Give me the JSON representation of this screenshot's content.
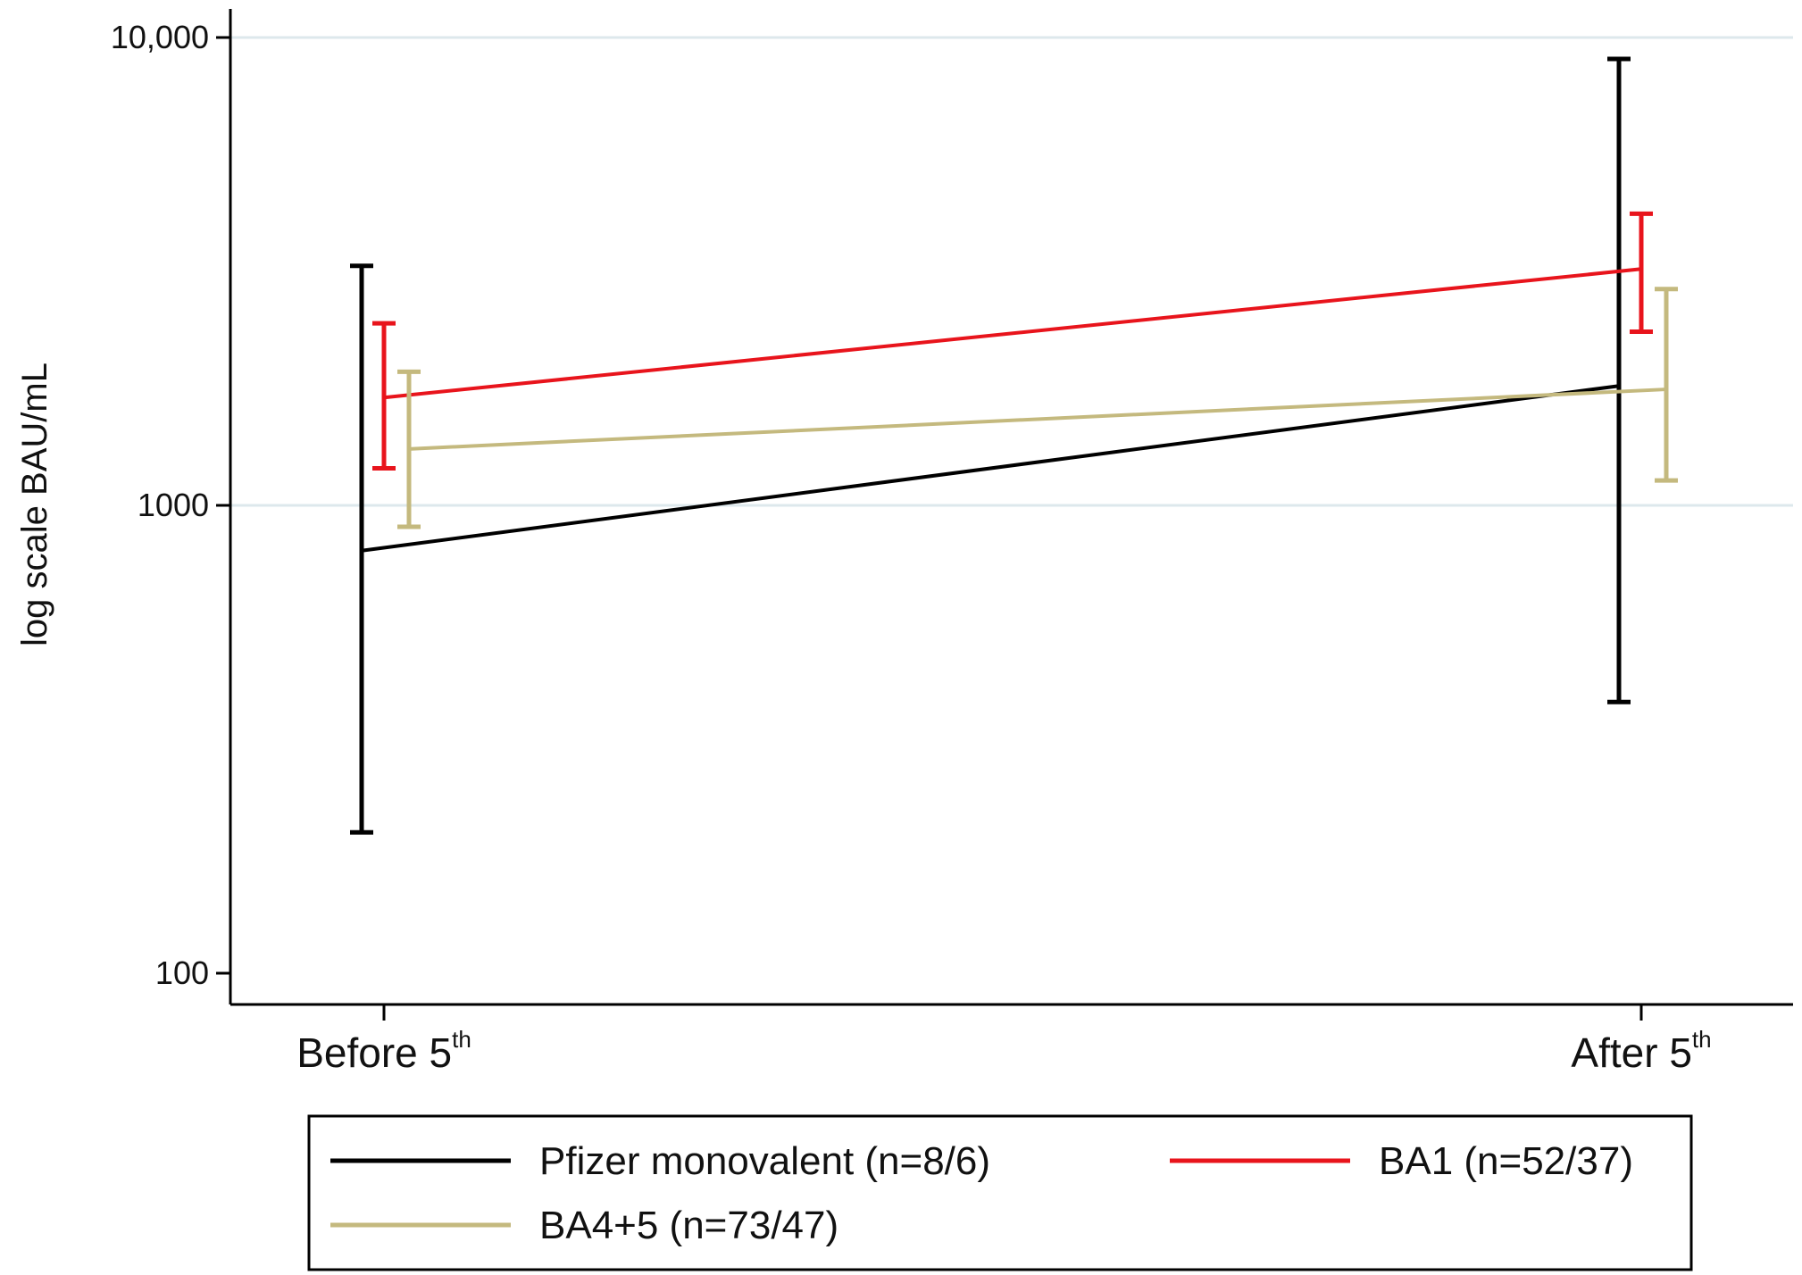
{
  "chart_data": {
    "type": "line",
    "title": "",
    "ylabel": "log scale BAU/mL",
    "xlabel": "",
    "yscale": "log",
    "ylim": [
      80,
      13000
    ],
    "yticks": [
      {
        "value": 100,
        "label": "100"
      },
      {
        "value": 1000,
        "label": "1000"
      },
      {
        "value": 10000,
        "label": "10,000"
      }
    ],
    "grid": "horizontal at 1000 and 10,000",
    "legend_position": "bottom",
    "categories": [
      {
        "base": "Before 5",
        "sup": "th"
      },
      {
        "base": "After 5",
        "sup": "th"
      }
    ],
    "series": [
      {
        "name": "Pfizer monovalent (n=8/6)",
        "color": "#000000",
        "values": [
          800,
          1800
        ],
        "lower": [
          200,
          380
        ],
        "upper": [
          3250,
          9000
        ]
      },
      {
        "name": "BA1 (n=52/37)",
        "color": "#e8141c",
        "values": [
          1700,
          3200
        ],
        "lower": [
          1200,
          2350
        ],
        "upper": [
          2450,
          4200
        ]
      },
      {
        "name": "BA4+5 (n=73/47)",
        "color": "#c4b97e",
        "values": [
          1320,
          1770
        ],
        "lower": [
          900,
          1130
        ],
        "upper": [
          1930,
          2900
        ]
      }
    ]
  }
}
